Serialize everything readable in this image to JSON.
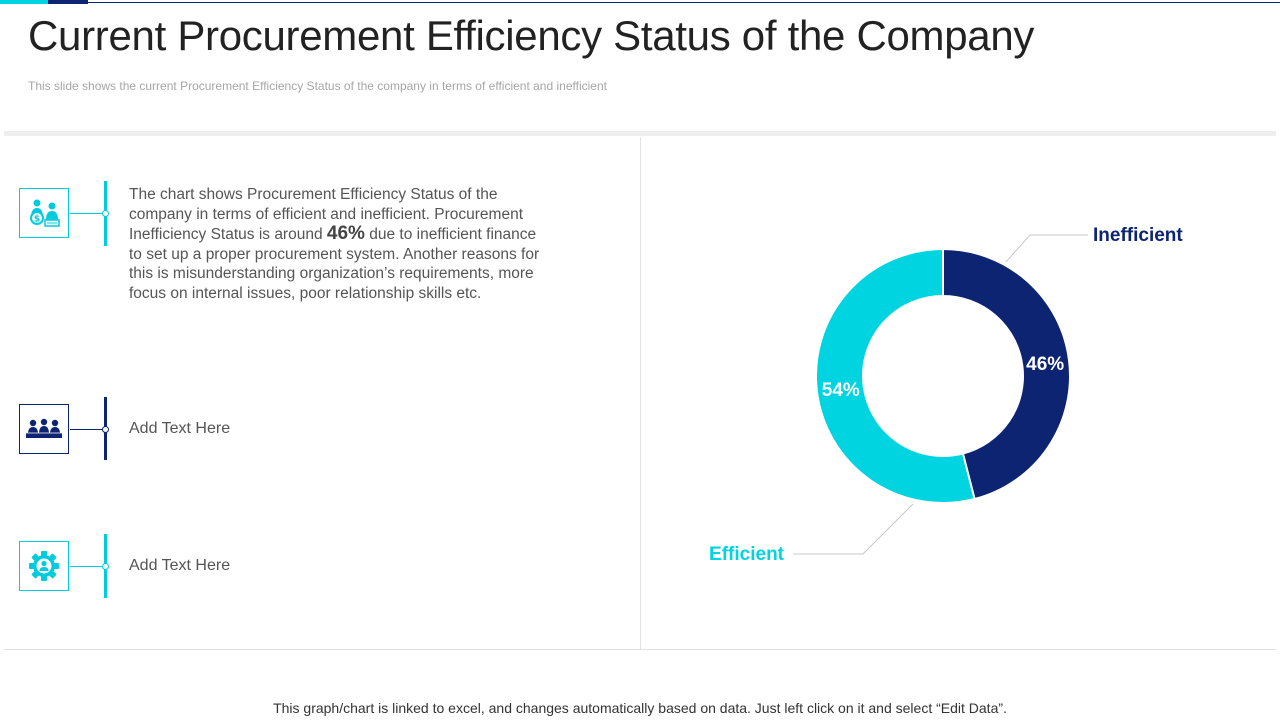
{
  "header": {
    "title": "Current Procurement Efficiency Status of the Company",
    "subtitle": "This slide shows the current Procurement  Efficiency Status of the company in terms of efficient  and inefficient"
  },
  "items": [
    {
      "icon": "procurement-team-icon",
      "text_before": "The chart shows Procurement Efficiency Status of the company in terms of efficient and inefficient. Procurement Inefficiency  Status is around ",
      "highlight": "46%",
      "text_after": " due to inefficient finance to set up a proper procurement system. Another reasons for this is misunderstanding organization’s requirements, more focus on internal issues, poor relationship skills etc."
    },
    {
      "icon": "meeting-group-icon",
      "text": "Add Text Here"
    },
    {
      "icon": "gear-person-icon",
      "text": "Add Text Here"
    }
  ],
  "colors": {
    "efficient": "#00d4e0",
    "inefficient": "#0d2473",
    "cyan_accent": "#00ccdd",
    "navy_accent": "#0d2473"
  },
  "chart_data": {
    "type": "pie",
    "variant": "donut",
    "categories": [
      "Inefficient",
      "Efficient"
    ],
    "values": [
      46,
      54
    ],
    "labels": [
      "46%",
      "54%"
    ],
    "unit": "%"
  },
  "footer": {
    "note": "This graph/chart is linked to excel, and changes automatically based on data. Just left click on it and select “Edit Data”."
  }
}
